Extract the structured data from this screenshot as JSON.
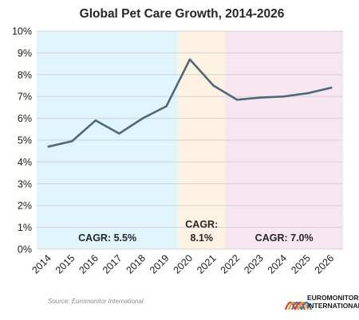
{
  "chart_data": {
    "type": "line",
    "title": "Global Pet Care Growth, 2014-2026",
    "x": [
      "2014",
      "2015",
      "2016",
      "2017",
      "2018",
      "2019",
      "2020",
      "2021",
      "2022",
      "2023",
      "2024",
      "2025",
      "2026"
    ],
    "series": [
      {
        "values": [
          4.7,
          4.95,
          5.9,
          5.3,
          6.0,
          6.55,
          8.7,
          7.5,
          6.85,
          6.95,
          7.0,
          7.15,
          7.4
        ]
      }
    ],
    "ylim": [
      0,
      10
    ],
    "yticks": [
      "0%",
      "1%",
      "2%",
      "3%",
      "4%",
      "5%",
      "6%",
      "7%",
      "8%",
      "9%",
      "10%"
    ],
    "grid": true,
    "line_color": "#4d6878",
    "periods": [
      {
        "from": "2014",
        "to": "2019",
        "color": "#dff4fb",
        "label_lines": [
          "CAGR: 5.5%"
        ]
      },
      {
        "from": "2020",
        "to": "2021",
        "color": "#fdf1e1",
        "label_lines": [
          "CAGR:",
          "8.1%"
        ]
      },
      {
        "from": "2022",
        "to": "2026",
        "color": "#f6e6f0",
        "label_lines": [
          "CAGR: 7.0%"
        ]
      }
    ]
  },
  "footer": {
    "source": "Source: Euromonitor International",
    "logo_line1": "EUROMONITOR",
    "logo_line2": "INTERNATIONAL",
    "logo_colors": [
      "#e23b2e",
      "#f29a1f",
      "#2f7fc1"
    ]
  }
}
